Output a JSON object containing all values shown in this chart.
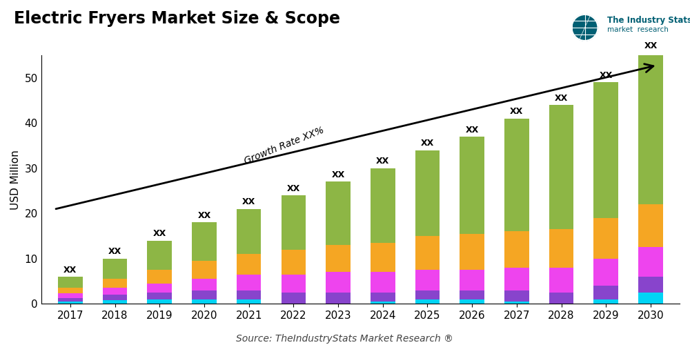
{
  "title": "Electric Fryers Market Size & Scope",
  "ylabel": "USD Million",
  "source": "Source: TheIndustryStats Market Research ®",
  "years": [
    2017,
    2018,
    2019,
    2020,
    2021,
    2022,
    2023,
    2024,
    2025,
    2026,
    2027,
    2028,
    2029,
    2030
  ],
  "segments": {
    "olive": {
      "color": "#8db645",
      "values": [
        2.5,
        4.5,
        6.5,
        8.5,
        10.0,
        12.0,
        14.0,
        16.5,
        19.0,
        21.5,
        25.0,
        27.5,
        30.0,
        33.5
      ]
    },
    "orange": {
      "color": "#f5a623",
      "values": [
        1.2,
        2.0,
        3.0,
        4.0,
        4.5,
        5.5,
        6.0,
        6.5,
        7.5,
        8.0,
        8.0,
        8.5,
        9.0,
        9.5
      ]
    },
    "magenta": {
      "color": "#ee44ee",
      "values": [
        1.0,
        1.5,
        2.0,
        2.5,
        3.5,
        4.0,
        4.5,
        4.5,
        4.5,
        4.5,
        5.0,
        5.5,
        6.0,
        6.5
      ]
    },
    "purple": {
      "color": "#8844cc",
      "values": [
        0.8,
        1.2,
        1.5,
        2.0,
        2.0,
        2.5,
        2.5,
        2.0,
        2.0,
        2.0,
        2.5,
        2.5,
        3.0,
        3.5
      ]
    },
    "cyan": {
      "color": "#00d4f5",
      "values": [
        0.5,
        0.8,
        1.0,
        1.0,
        1.0,
        0.0,
        0.0,
        0.5,
        1.0,
        1.0,
        0.5,
        0.0,
        1.0,
        2.5
      ]
    }
  },
  "bar_width": 0.55,
  "ylim": [
    0,
    55
  ],
  "yticks": [
    0,
    10,
    20,
    30,
    40,
    50
  ],
  "growth_label": "Growth Rate XX%",
  "background_color": "#ffffff",
  "title_fontsize": 17,
  "tick_fontsize": 11,
  "label_fontsize": 11,
  "source_fontsize": 10
}
